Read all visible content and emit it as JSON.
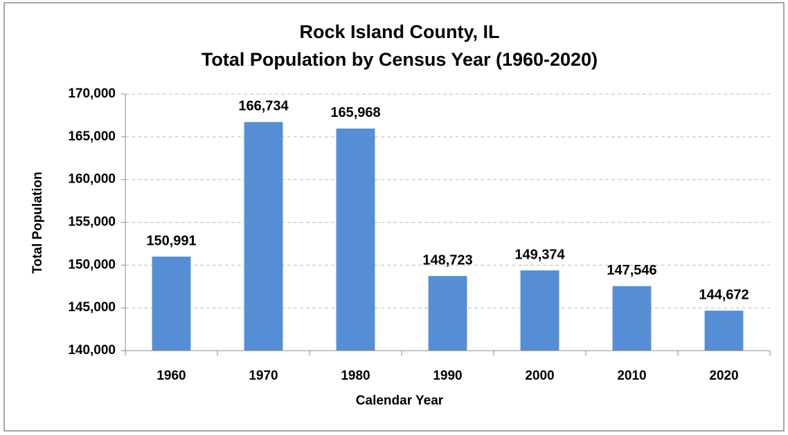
{
  "chart_data": {
    "type": "bar",
    "title": "Rock Island County, IL",
    "subtitle": "Total Population by Census Year (1960-2020)",
    "x_label": "Calendar Year",
    "y_label": "Total Population",
    "categories": [
      "1960",
      "1970",
      "1980",
      "1990",
      "2000",
      "2010",
      "2020"
    ],
    "values": [
      150991,
      166734,
      165968,
      148723,
      149374,
      147546,
      144672
    ],
    "value_labels": [
      "150,991",
      "166,734",
      "165,968",
      "148,723",
      "149,374",
      "147,546",
      "144,672"
    ],
    "color": "#558ed5",
    "ylim": [
      140000,
      170000
    ],
    "yticks": [
      {
        "value": 140000,
        "label": "140,000"
      },
      {
        "value": 145000,
        "label": "145,000"
      },
      {
        "value": 150000,
        "label": "150,000"
      },
      {
        "value": 155000,
        "label": "155,000"
      },
      {
        "value": 160000,
        "label": "160,000"
      },
      {
        "value": 165000,
        "label": "165,000"
      },
      {
        "value": 170000,
        "label": "170,000"
      }
    ],
    "grid": true
  }
}
